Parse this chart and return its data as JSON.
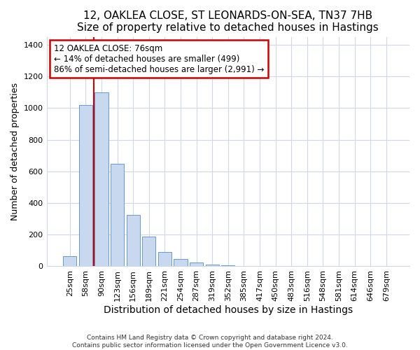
{
  "title1": "12, OAKLEA CLOSE, ST LEONARDS-ON-SEA, TN37 7HB",
  "title2": "Size of property relative to detached houses in Hastings",
  "xlabel": "Distribution of detached houses by size in Hastings",
  "ylabel": "Number of detached properties",
  "bar_labels": [
    "25sqm",
    "58sqm",
    "90sqm",
    "123sqm",
    "156sqm",
    "189sqm",
    "221sqm",
    "254sqm",
    "287sqm",
    "319sqm",
    "352sqm",
    "385sqm",
    "417sqm",
    "450sqm",
    "483sqm",
    "516sqm",
    "548sqm",
    "581sqm",
    "614sqm",
    "646sqm",
    "679sqm"
  ],
  "bar_values": [
    65,
    1020,
    1100,
    650,
    325,
    190,
    90,
    48,
    22,
    10,
    5,
    0,
    0,
    0,
    0,
    0,
    0,
    0,
    0,
    0,
    0
  ],
  "bar_color": "#c8d8ef",
  "bar_edge_color": "#6699cc",
  "property_line_x": 1.5,
  "annotation_text1": "12 OAKLEA CLOSE: 76sqm",
  "annotation_text2": "← 14% of detached houses are smaller (499)",
  "annotation_text3": "86% of semi-detached houses are larger (2,991) →",
  "annotation_box_color": "#ffffff",
  "annotation_border_color": "#cc0000",
  "vline_color": "#cc0000",
  "footnote1": "Contains HM Land Registry data © Crown copyright and database right 2024.",
  "footnote2": "Contains public sector information licensed under the Open Government Licence v3.0.",
  "ylim": [
    0,
    1450
  ],
  "bg_color": "#ffffff",
  "plot_bg_color": "#ffffff",
  "grid_color": "#d0d8e8",
  "title1_fontsize": 11,
  "title2_fontsize": 10,
  "xlabel_fontsize": 10,
  "ylabel_fontsize": 9,
  "tick_fontsize": 8,
  "annot_fontsize": 8.5,
  "footnote_fontsize": 6.5
}
